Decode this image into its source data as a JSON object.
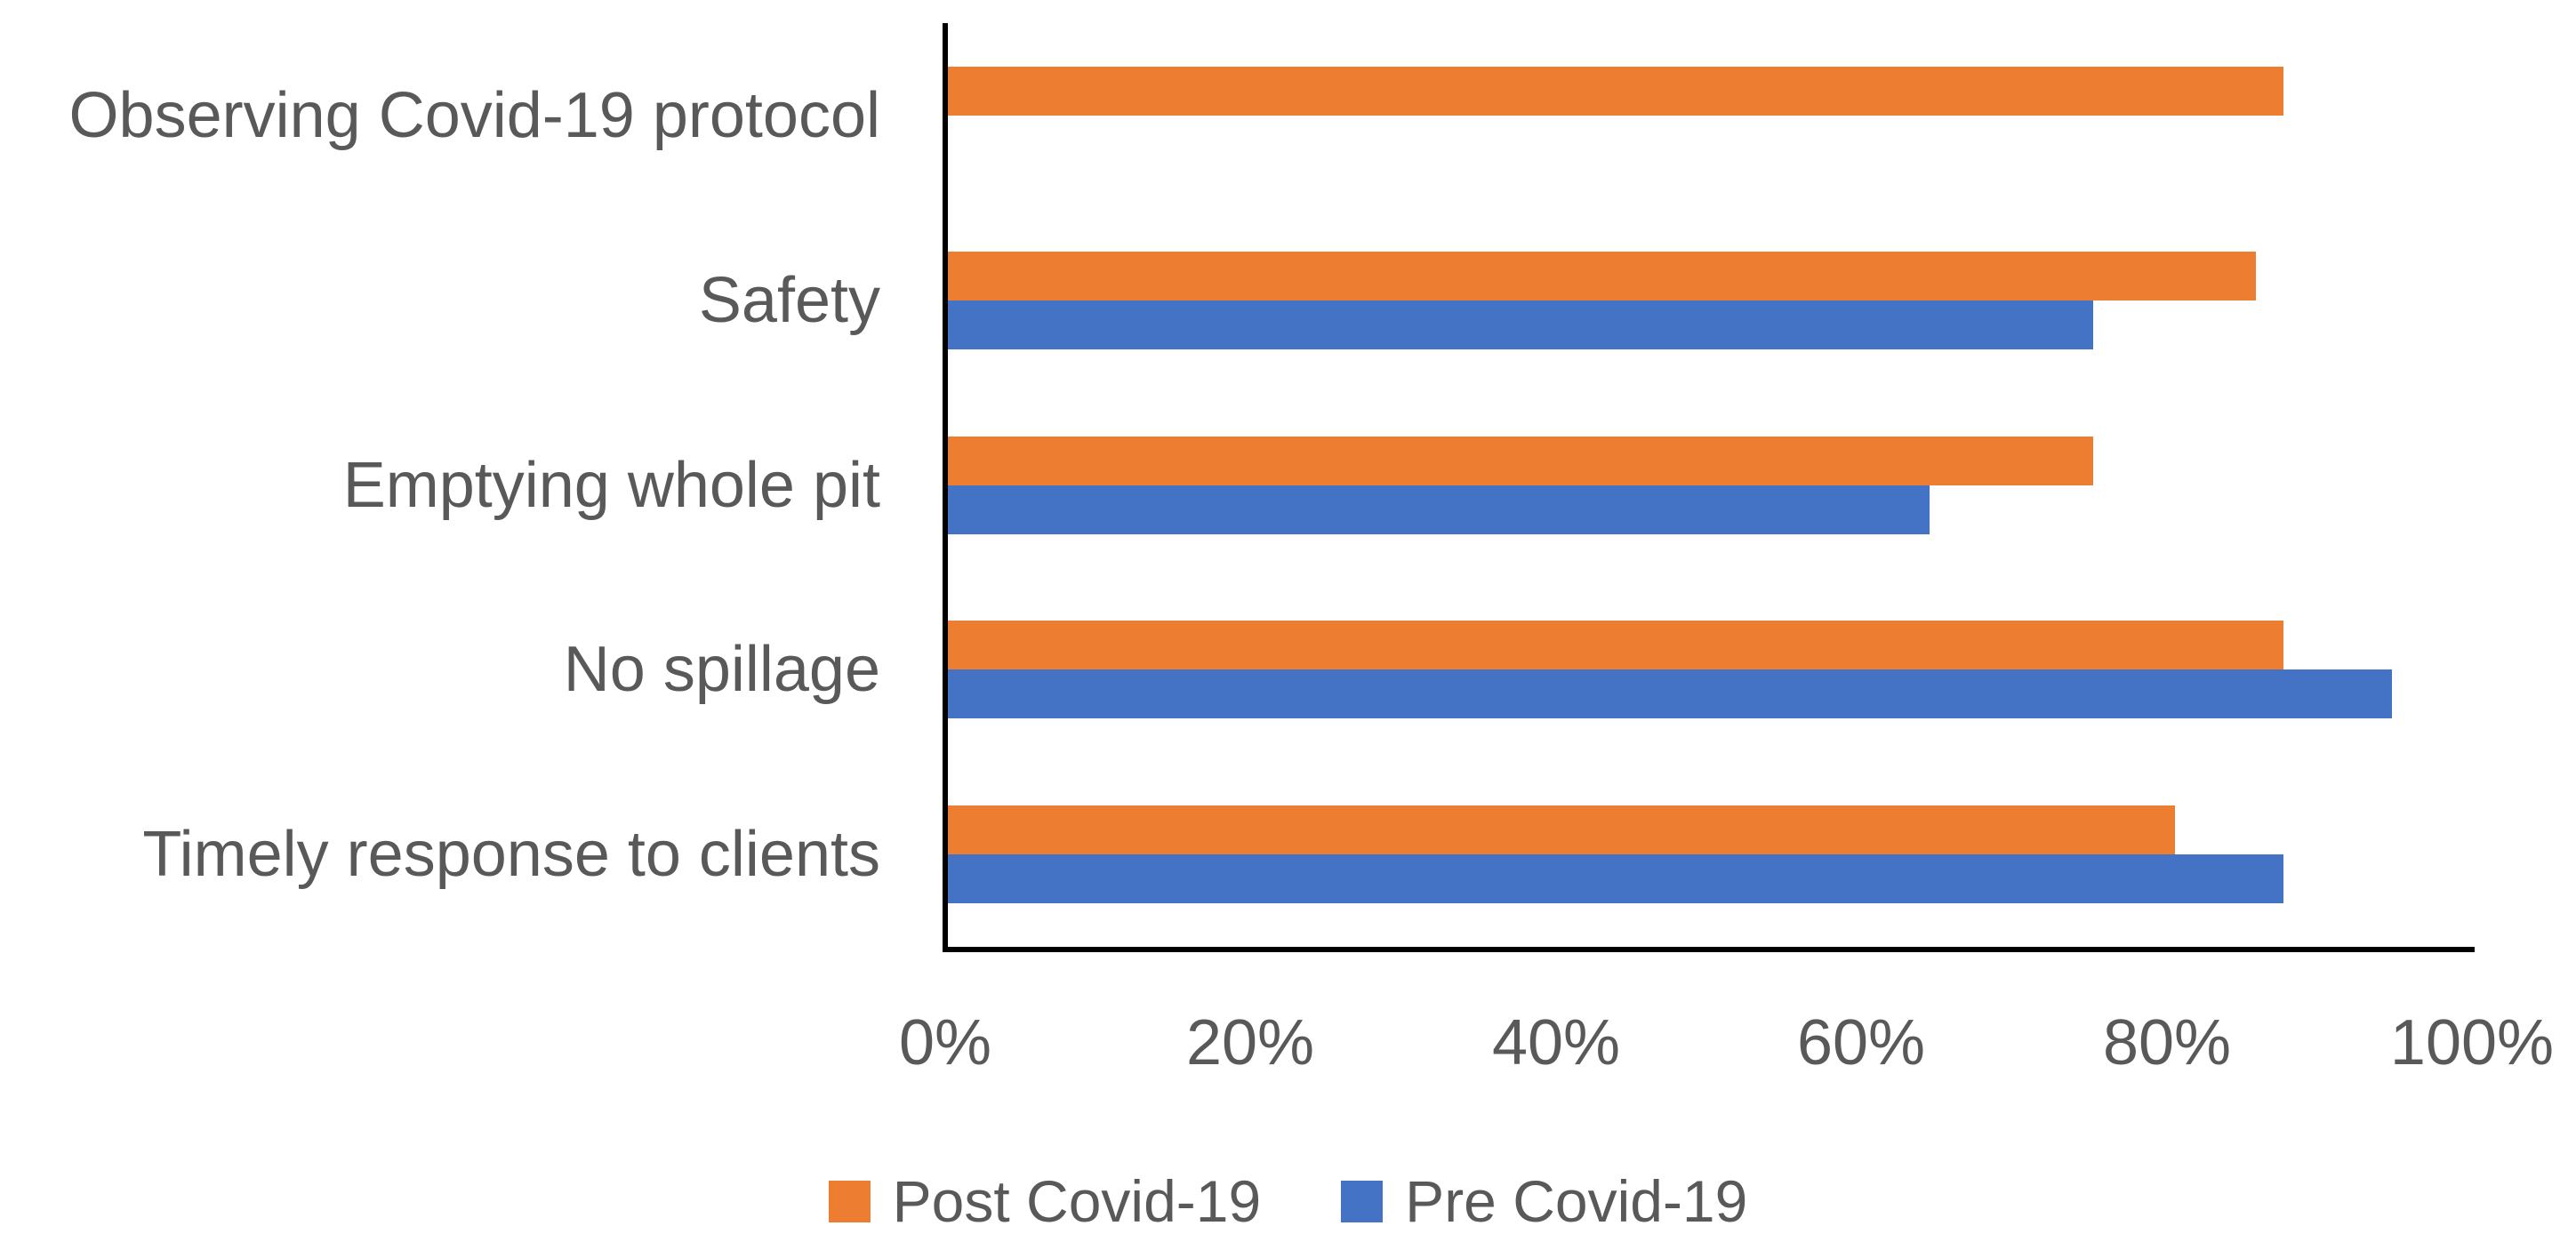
{
  "chart_data": {
    "type": "bar",
    "orientation": "horizontal",
    "title": "",
    "xlabel": "",
    "ylabel": "",
    "categories": [
      "Observing Covid-19 protocol",
      "Safety",
      "Emptying whole pit",
      "No spillage",
      "Timely response to clients"
    ],
    "series": [
      {
        "name": "Post Covid-19",
        "color": "#ED7D31",
        "values": [
          87.5,
          85.7,
          75,
          87.5,
          80.4
        ]
      },
      {
        "name": "Pre Covid-19",
        "color": "#4472C4",
        "values": [
          0,
          75,
          64.3,
          94.6,
          87.5
        ]
      }
    ],
    "x_ticks": [
      "0%",
      "20%",
      "40%",
      "60%",
      "80%",
      "100%"
    ],
    "xlim": [
      0,
      100
    ],
    "grid": false,
    "legend_position": "bottom"
  },
  "colors": {
    "post_series": "#ED7D31",
    "pre_series": "#4472C4",
    "label_text": "#595959",
    "axis_line": "#000000",
    "background": "#FFFFFF"
  }
}
